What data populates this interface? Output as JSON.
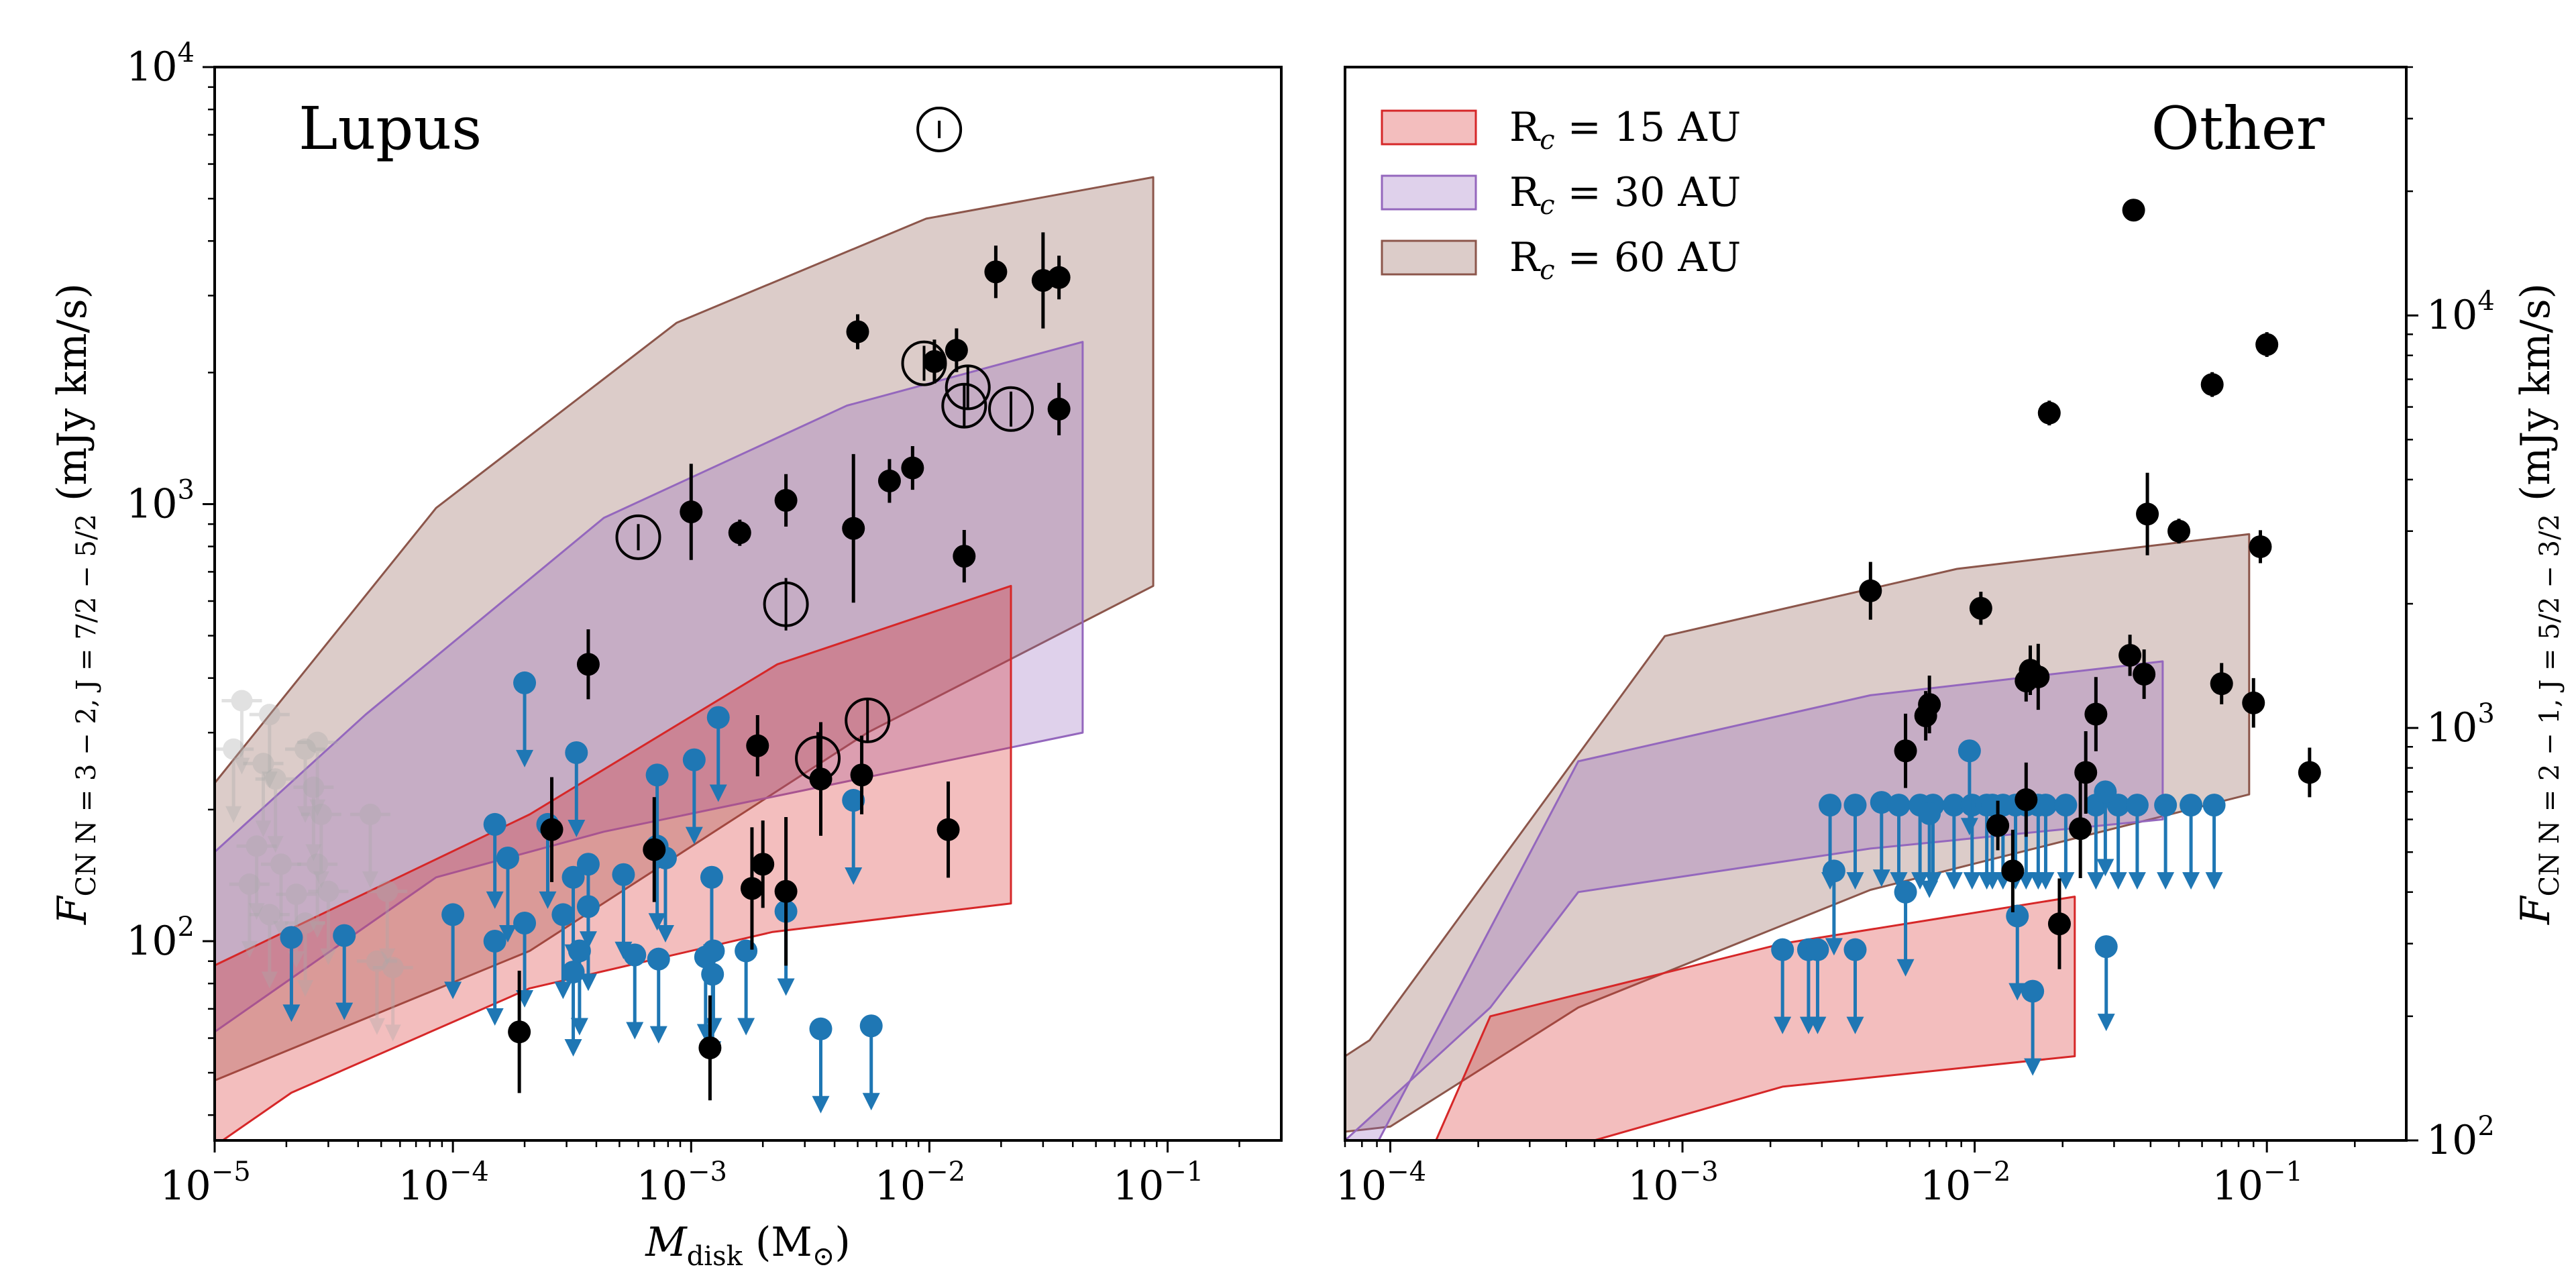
{
  "chart_data": [
    {
      "type": "scatter",
      "panel_label": "Lupus",
      "xlabel": {
        "symbol": "M",
        "sub": "disk",
        "unit_open": " (M",
        "unit_sub": "⊙",
        "unit_close": ")"
      },
      "ylabel": {
        "symbol": "F",
        "sub": "CN N = 3 − 2, J = 7/2 − 5/2",
        "unit": " (mJy km/s)"
      },
      "xscale": "log",
      "yscale": "log",
      "xlim": [
        1e-05,
        0.3
      ],
      "ylim": [
        35,
        10000
      ],
      "x_ticks": [
        {
          "base": "10",
          "exp": "−5"
        },
        {
          "base": "10",
          "exp": "−4"
        },
        {
          "base": "10",
          "exp": "−3"
        },
        {
          "base": "10",
          "exp": "−2"
        },
        {
          "base": "10",
          "exp": "−1"
        }
      ],
      "x_tick_values": [
        1e-05,
        0.0001,
        0.001,
        0.01,
        0.1
      ],
      "y_ticks": [
        {
          "base": "10",
          "exp": "2"
        },
        {
          "base": "10",
          "exp": "3"
        },
        {
          "base": "10",
          "exp": "4"
        }
      ],
      "y_tick_values": [
        100,
        1000,
        10000
      ],
      "bands": [
        {
          "name": "R_c = 60 AU",
          "color": "#8c564b",
          "lower": [
            [
              1e-05,
              48
            ],
            [
              0.00021,
              95
            ],
            [
              0.0055,
              300
            ],
            [
              0.087,
              650
            ]
          ],
          "upper": [
            [
              1e-05,
              230
            ],
            [
              8.5e-05,
              980
            ],
            [
              0.00087,
              2600
            ],
            [
              0.0097,
              4500
            ],
            [
              0.087,
              5600
            ]
          ]
        },
        {
          "name": "R_c = 30 AU",
          "color": "#9467bd",
          "lower": [
            [
              1e-05,
              62
            ],
            [
              8.5e-05,
              140
            ],
            [
              0.00043,
              178
            ],
            [
              0.044,
              300
            ]
          ],
          "upper": [
            [
              1e-05,
              160
            ],
            [
              4.3e-05,
              330
            ],
            [
              0.00043,
              930
            ],
            [
              0.0045,
              1680
            ],
            [
              0.044,
              2350
            ]
          ]
        },
        {
          "name": "R_c = 15 AU",
          "color": "#d62728",
          "lower": [
            [
              1e-05,
              34
            ],
            [
              2.1e-05,
              45
            ],
            [
              0.00021,
              78
            ],
            [
              0.0022,
              105
            ],
            [
              0.022,
              122
            ]
          ],
          "upper": [
            [
              1e-05,
              88
            ],
            [
              0.00021,
              195
            ],
            [
              0.0023,
              430
            ],
            [
              0.022,
              650
            ]
          ]
        }
      ],
      "detections": [
        [
          0.019,
          3400
        ],
        [
          0.03,
          3250
        ],
        [
          0.035,
          3300
        ],
        [
          0.005,
          2480
        ],
        [
          0.013,
          2250
        ],
        [
          0.0105,
          2120
        ],
        [
          0.035,
          1650
        ],
        [
          0.0025,
          1020
        ],
        [
          0.001,
          960
        ],
        [
          0.0068,
          1130
        ],
        [
          0.0085,
          1210
        ],
        [
          0.0016,
          860
        ],
        [
          0.0048,
          880
        ],
        [
          0.014,
          760
        ],
        [
          0.00037,
          430
        ],
        [
          0.0019,
          280
        ],
        [
          0.0035,
          235
        ],
        [
          0.0052,
          240
        ],
        [
          0.012,
          180
        ],
        [
          0.00026,
          180
        ],
        [
          0.0007,
          162
        ],
        [
          0.002,
          150
        ],
        [
          0.0018,
          132
        ],
        [
          0.0025,
          130
        ],
        [
          0.00019,
          62
        ],
        [
          0.0012,
          57
        ]
      ],
      "det_err": [
        [
          0.019,
          3400,
          0.06
        ],
        [
          0.03,
          3250,
          0.11
        ],
        [
          0.035,
          3300,
          0.05
        ],
        [
          0.005,
          2480,
          0.04
        ],
        [
          0.013,
          2250,
          0.05
        ],
        [
          0.0105,
          2120,
          0.05
        ],
        [
          0.035,
          1650,
          0.06
        ],
        [
          0.0025,
          1020,
          0.06
        ],
        [
          0.001,
          960,
          0.11
        ],
        [
          0.0068,
          1130,
          0.05
        ],
        [
          0.0085,
          1210,
          0.05
        ],
        [
          0.0016,
          860,
          0.03
        ],
        [
          0.0048,
          880,
          0.17
        ],
        [
          0.014,
          760,
          0.06
        ],
        [
          0.00037,
          430,
          0.08
        ],
        [
          0.0019,
          280,
          0.07
        ],
        [
          0.0035,
          235,
          0.13
        ],
        [
          0.0052,
          240,
          0.09
        ],
        [
          0.012,
          180,
          0.11
        ],
        [
          0.00026,
          180,
          0.12
        ],
        [
          0.0007,
          162,
          0.12
        ],
        [
          0.002,
          150,
          0.1
        ],
        [
          0.0018,
          132,
          0.14
        ],
        [
          0.0025,
          130,
          0.17
        ],
        [
          0.00019,
          62,
          0.14
        ],
        [
          0.0012,
          57,
          0.12
        ]
      ],
      "circled": [
        [
          0.011,
          7200,
          0.02
        ],
        [
          0.0006,
          840,
          0.03
        ],
        [
          0.0025,
          590,
          0.06
        ],
        [
          0.0095,
          2100,
          0.04
        ],
        [
          0.0145,
          1850,
          0.05
        ],
        [
          0.014,
          1680,
          0.05
        ],
        [
          0.022,
          1650,
          0.04
        ],
        [
          0.0055,
          320,
          0.05
        ],
        [
          0.0034,
          262,
          0.06
        ]
      ],
      "upper_limits": [
        [
          0.0002,
          390
        ],
        [
          0.00033,
          270
        ],
        [
          0.00103,
          260
        ],
        [
          0.00072,
          240
        ],
        [
          0.0013,
          325
        ],
        [
          0.0048,
          210
        ],
        [
          0.00015,
          185
        ],
        [
          0.00025,
          185
        ],
        [
          0.00017,
          155
        ],
        [
          0.00037,
          150
        ],
        [
          0.00032,
          140
        ],
        [
          0.00052,
          142
        ],
        [
          0.00078,
          155
        ],
        [
          0.00072,
          165
        ],
        [
          0.00122,
          140
        ],
        [
          0.00037,
          120
        ],
        [
          0.0002,
          110
        ],
        [
          0.00029,
          115
        ],
        [
          0.0001,
          115
        ],
        [
          0.00015,
          100
        ],
        [
          2.1e-05,
          102
        ],
        [
          3.5e-05,
          103
        ],
        [
          0.00034,
          95
        ],
        [
          0.00058,
          93
        ],
        [
          0.00073,
          91
        ],
        [
          0.00115,
          92
        ],
        [
          0.00124,
          95
        ],
        [
          0.00032,
          85
        ],
        [
          0.00123,
          84
        ],
        [
          0.0025,
          117
        ],
        [
          0.0017,
          95
        ],
        [
          0.0035,
          63
        ],
        [
          0.0057,
          64
        ]
      ],
      "faded": [
        [
          1.3e-05,
          355
        ],
        [
          1.7e-05,
          330
        ],
        [
          1.2e-05,
          275
        ],
        [
          2.4e-05,
          275
        ],
        [
          2.7e-05,
          285
        ],
        [
          1.6e-05,
          255
        ],
        [
          1.8e-05,
          235
        ],
        [
          2.6e-05,
          225
        ],
        [
          2.8e-05,
          195
        ],
        [
          4.5e-05,
          195
        ],
        [
          1.5e-05,
          165
        ],
        [
          1.9e-05,
          150
        ],
        [
          2.7e-05,
          150
        ],
        [
          1.4e-05,
          135
        ],
        [
          2.2e-05,
          128
        ],
        [
          3e-05,
          130
        ],
        [
          5.3e-05,
          130
        ],
        [
          2.4e-05,
          110
        ],
        [
          1.7e-05,
          115
        ],
        [
          4.8e-05,
          90
        ],
        [
          5.6e-05,
          87
        ]
      ]
    },
    {
      "type": "scatter",
      "panel_label": "Other",
      "ylabel": {
        "symbol": "F",
        "sub": "CN N = 2 − 1, J = 5/2 − 3/2",
        "unit": " (mJy km/s)"
      },
      "xscale": "log",
      "yscale": "log",
      "xlim": [
        7e-05,
        0.3
      ],
      "ylim": [
        100,
        40000
      ],
      "x_ticks": [
        {
          "base": "10",
          "exp": "−4"
        },
        {
          "base": "10",
          "exp": "−3"
        },
        {
          "base": "10",
          "exp": "−2"
        },
        {
          "base": "10",
          "exp": "−1"
        }
      ],
      "x_tick_values": [
        0.0001,
        0.001,
        0.01,
        0.1
      ],
      "y_ticks": [
        {
          "base": "10",
          "exp": "2"
        },
        {
          "base": "10",
          "exp": "3"
        },
        {
          "base": "10",
          "exp": "4"
        }
      ],
      "y_tick_values": [
        100,
        1000,
        10000
      ],
      "bands": [
        {
          "name": "R_c = 60 AU",
          "color": "#8c564b",
          "lower": [
            [
              7e-05,
              105
            ],
            [
              0.0001,
              108
            ],
            [
              0.00044,
              210
            ],
            [
              0.0044,
              405
            ],
            [
              0.087,
              690
            ]
          ],
          "upper": [
            [
              7e-05,
              160
            ],
            [
              8.5e-05,
              175
            ],
            [
              0.00087,
              1670
            ],
            [
              0.0087,
              2430
            ],
            [
              0.087,
              2950
            ]
          ]
        },
        {
          "name": "R_c = 30 AU",
          "color": "#9467bd",
          "lower": [
            [
              7e-05,
              100
            ],
            [
              0.00022,
              210
            ],
            [
              0.00044,
              400
            ],
            [
              0.0044,
              510
            ],
            [
              0.044,
              600
            ]
          ],
          "upper": [
            [
              7e-05,
              70
            ],
            [
              0.00044,
              830
            ],
            [
              0.0044,
              1200
            ],
            [
              0.044,
              1450
            ]
          ]
        },
        {
          "name": "R_c = 15 AU",
          "color": "#d62728",
          "lower": [
            [
              0.00012,
              75
            ],
            [
              0.0022,
              135
            ],
            [
              0.022,
              160
            ]
          ],
          "upper": [
            [
              0.00022,
              200
            ],
            [
              0.0022,
              300
            ],
            [
              0.022,
              390
            ]
          ]
        }
      ],
      "detections": [
        [
          0.035,
          18000
        ],
        [
          0.1,
          8500
        ],
        [
          0.018,
          5800
        ],
        [
          0.065,
          6800
        ],
        [
          0.039,
          3300
        ],
        [
          0.05,
          3000
        ],
        [
          0.095,
          2750
        ],
        [
          0.0044,
          2150
        ],
        [
          0.0105,
          1950
        ],
        [
          0.034,
          1500
        ],
        [
          0.038,
          1350
        ],
        [
          0.0155,
          1380
        ],
        [
          0.0165,
          1330
        ],
        [
          0.015,
          1300
        ],
        [
          0.07,
          1280
        ],
        [
          0.007,
          1140
        ],
        [
          0.0068,
          1070
        ],
        [
          0.09,
          1150
        ],
        [
          0.026,
          1080
        ],
        [
          0.0058,
          880
        ],
        [
          0.024,
          780
        ],
        [
          0.14,
          780
        ],
        [
          0.015,
          670
        ],
        [
          0.012,
          580
        ],
        [
          0.023,
          570
        ],
        [
          0.0135,
          450
        ],
        [
          0.0195,
          335
        ]
      ],
      "det_err": [
        [
          0.035,
          18000,
          0.02
        ],
        [
          0.1,
          8500,
          0.03
        ],
        [
          0.018,
          5800,
          0.03
        ],
        [
          0.065,
          6800,
          0.03
        ],
        [
          0.039,
          3300,
          0.1
        ],
        [
          0.05,
          3000,
          0.03
        ],
        [
          0.095,
          2750,
          0.04
        ],
        [
          0.0044,
          2150,
          0.07
        ],
        [
          0.0105,
          1950,
          0.04
        ],
        [
          0.034,
          1500,
          0.05
        ],
        [
          0.038,
          1350,
          0.06
        ],
        [
          0.0155,
          1380,
          0.06
        ],
        [
          0.0165,
          1330,
          0.08
        ],
        [
          0.015,
          1300,
          0.05
        ],
        [
          0.07,
          1280,
          0.05
        ],
        [
          0.007,
          1140,
          0.07
        ],
        [
          0.0068,
          1070,
          0.06
        ],
        [
          0.09,
          1150,
          0.06
        ],
        [
          0.026,
          1080,
          0.09
        ],
        [
          0.0058,
          880,
          0.09
        ],
        [
          0.024,
          780,
          0.1
        ],
        [
          0.14,
          780,
          0.06
        ],
        [
          0.015,
          670,
          0.09
        ],
        [
          0.012,
          580,
          0.06
        ],
        [
          0.023,
          570,
          0.12
        ],
        [
          0.0135,
          450,
          0.1
        ],
        [
          0.0195,
          335,
          0.11
        ]
      ],
      "upper_limits": [
        [
          0.0032,
          650
        ],
        [
          0.0039,
          650
        ],
        [
          0.0048,
          660
        ],
        [
          0.0055,
          650
        ],
        [
          0.0065,
          650
        ],
        [
          0.0072,
          650
        ],
        [
          0.0085,
          650
        ],
        [
          0.0098,
          650
        ],
        [
          0.011,
          650
        ],
        [
          0.0115,
          650
        ],
        [
          0.0125,
          650
        ],
        [
          0.0138,
          650
        ],
        [
          0.015,
          650
        ],
        [
          0.0165,
          650
        ],
        [
          0.0175,
          650
        ],
        [
          0.0205,
          650
        ],
        [
          0.026,
          650
        ],
        [
          0.031,
          650
        ],
        [
          0.036,
          650
        ],
        [
          0.045,
          650
        ],
        [
          0.055,
          650
        ],
        [
          0.066,
          650
        ],
        [
          0.0096,
          880
        ],
        [
          0.028,
          700
        ],
        [
          0.007,
          620
        ],
        [
          0.0033,
          450
        ],
        [
          0.0058,
          400
        ],
        [
          0.014,
          350
        ],
        [
          0.0027,
          290
        ],
        [
          0.0022,
          290
        ],
        [
          0.0029,
          290
        ],
        [
          0.0039,
          290
        ],
        [
          0.0158,
          230
        ],
        [
          0.0282,
          295
        ]
      ]
    }
  ],
  "legend": [
    {
      "prefix": "R",
      "sub": "c",
      "suffix": " = 15 AU",
      "color": "#d62728"
    },
    {
      "prefix": "R",
      "sub": "c",
      "suffix": " = 30 AU",
      "color": "#9467bd"
    },
    {
      "prefix": "R",
      "sub": "c",
      "suffix": " = 60 AU",
      "color": "#8c564b"
    }
  ],
  "colors": {
    "detection": "#000000",
    "upper_limit": "#1f77b4",
    "faded": "#aaaaaa"
  }
}
